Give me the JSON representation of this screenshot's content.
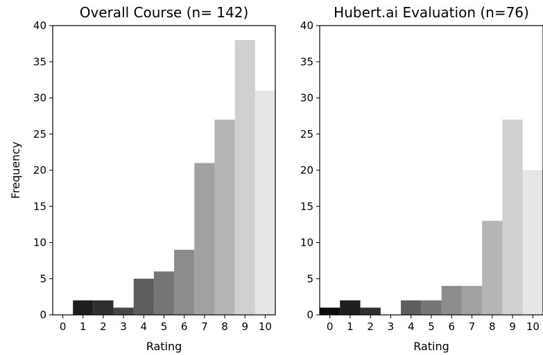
{
  "chart_data": [
    {
      "type": "bar",
      "title": "Overall Course (n= 142)",
      "xlabel": "Rating",
      "ylabel": "Frequency",
      "categories": [
        "0",
        "1",
        "2",
        "3",
        "4",
        "5",
        "6",
        "7",
        "8",
        "9",
        "10"
      ],
      "values": [
        0,
        2,
        2,
        1,
        5,
        6,
        9,
        21,
        27,
        38,
        31
      ],
      "bar_colors": [
        "#111111",
        "#1e1e1e",
        "#303030",
        "#474747",
        "#5e5e5e",
        "#767676",
        "#8c8c8c",
        "#a1a1a1",
        "#b5b5b5",
        "#d0d0d0",
        "#e6e6e6"
      ],
      "ylim": [
        0,
        40
      ],
      "yticks": [
        "0",
        "5",
        "10",
        "15",
        "20",
        "25",
        "30",
        "35",
        "40"
      ],
      "grid": false,
      "legend": "none"
    },
    {
      "type": "bar",
      "title": "Hubert.ai Evaluation (n=76)",
      "xlabel": "Rating",
      "ylabel": "",
      "categories": [
        "0",
        "1",
        "2",
        "3",
        "4",
        "5",
        "6",
        "7",
        "8",
        "9",
        "10"
      ],
      "values": [
        1,
        2,
        1,
        0,
        2,
        2,
        4,
        4,
        13,
        27,
        20
      ],
      "bar_colors": [
        "#0d0d0d",
        "#1e1e1e",
        "#303030",
        "#474747",
        "#5e5e5e",
        "#767676",
        "#8c8c8c",
        "#a1a1a1",
        "#b5b5b5",
        "#d0d0d0",
        "#e6e6e6"
      ],
      "ylim": [
        0,
        40
      ],
      "yticks": [
        "0",
        "5",
        "10",
        "15",
        "20",
        "25",
        "30",
        "35",
        "40"
      ],
      "grid": false,
      "legend": "none"
    }
  ]
}
